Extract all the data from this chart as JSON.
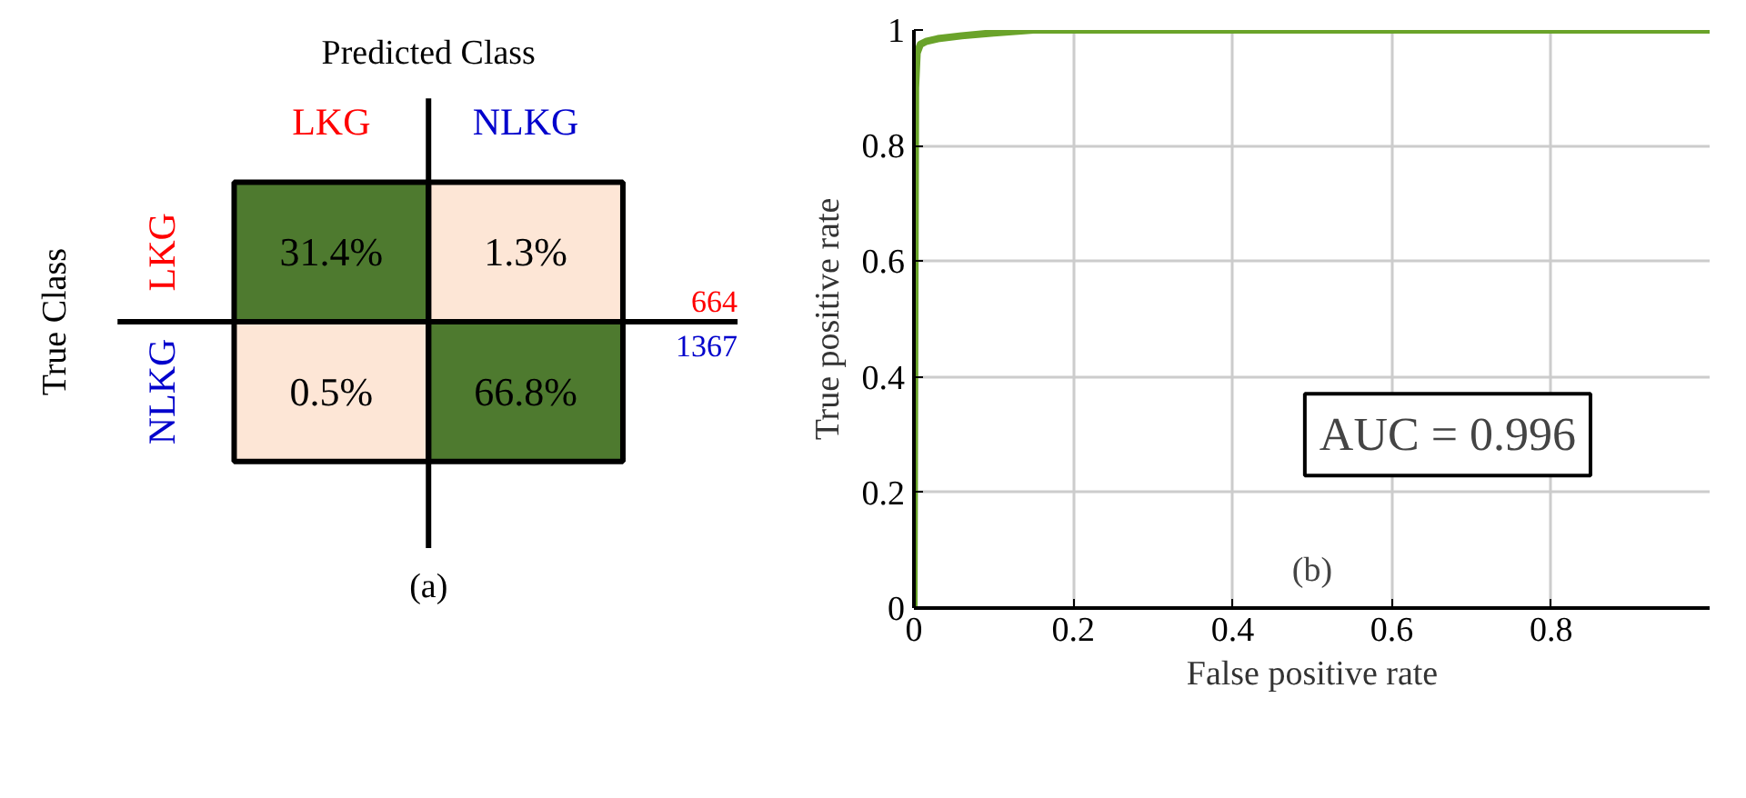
{
  "chart_data": [
    {
      "type": "heatmap",
      "xlabel": "Predicted Class",
      "ylabel": "True Class",
      "categories": [
        "LKG",
        "NLKG"
      ],
      "y_categories": [
        "LKG",
        "NLKG"
      ],
      "cells": [
        [
          31.4,
          1.3
        ],
        [
          0.5,
          66.8
        ]
      ],
      "cell_labels": [
        [
          "31.4%",
          "1.3%"
        ],
        [
          "0.5%",
          "66.8%"
        ]
      ],
      "annotations": [
        "664",
        "1367",
        "(a)"
      ]
    },
    {
      "type": "line",
      "xlabel": "False positive rate",
      "ylabel": "True positive rate",
      "series": [
        {
          "color": "#6aa32a",
          "x": [
            0,
            0.002,
            0.004,
            0.008,
            0.015,
            0.03,
            0.06,
            0.1,
            0.15,
            0.3,
            0.6,
            1.0
          ],
          "values": [
            0,
            0.9,
            0.96,
            0.975,
            0.98,
            0.985,
            0.99,
            0.995,
            1.0,
            1.0,
            1.0,
            1.0
          ]
        }
      ],
      "xlim": [
        0,
        1
      ],
      "ylim": [
        0,
        1
      ],
      "xticks": [
        0,
        0.2,
        0.4,
        0.6,
        0.8
      ],
      "yticks": [
        0,
        0.2,
        0.4,
        0.6,
        0.8,
        1
      ],
      "grid": true,
      "line_style": "solid",
      "marker": "none",
      "annotations": [
        "AUC = 0.996",
        "(b)"
      ]
    }
  ]
}
